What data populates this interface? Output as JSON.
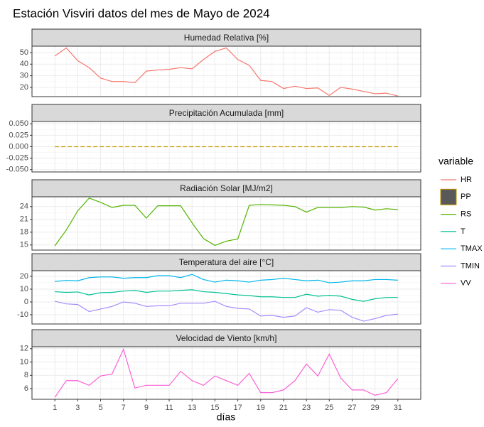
{
  "title": "Estación Visviri datos del mes de Mayo de 2024",
  "xlabel": "días",
  "legend_title": "variable",
  "chart_data": [
    {
      "type": "line",
      "title": "Humedad Relativa [%]",
      "x": [
        1,
        2,
        3,
        4,
        5,
        6,
        7,
        8,
        9,
        10,
        11,
        12,
        13,
        14,
        15,
        16,
        17,
        18,
        19,
        20,
        21,
        22,
        23,
        24,
        25,
        26,
        27,
        28,
        29,
        30,
        31
      ],
      "xlim": [
        -1,
        33
      ],
      "xticks": [
        1,
        3,
        5,
        7,
        9,
        11,
        13,
        15,
        17,
        19,
        21,
        23,
        25,
        27,
        29,
        31
      ],
      "ylim": [
        12,
        55.5
      ],
      "yticks": [
        20,
        30,
        40,
        50
      ],
      "series": [
        {
          "name": "HR",
          "color": "#F8766D",
          "values": [
            47,
            54,
            43,
            37,
            28,
            25,
            25,
            24,
            34,
            35,
            35.5,
            37,
            36,
            44,
            51,
            54,
            44,
            39,
            26,
            25,
            19,
            21,
            19,
            19.5,
            13,
            20,
            18.5,
            16.5,
            14.5,
            15,
            12.5
          ]
        }
      ]
    },
    {
      "type": "line",
      "title": "Precipitación Acumulada [mm]",
      "x": [
        1,
        2,
        3,
        4,
        5,
        6,
        7,
        8,
        9,
        10,
        11,
        12,
        13,
        14,
        15,
        16,
        17,
        18,
        19,
        20,
        21,
        22,
        23,
        24,
        25,
        26,
        27,
        28,
        29,
        30,
        31
      ],
      "xlim": [
        -1,
        33
      ],
      "xticks": [
        1,
        3,
        5,
        7,
        9,
        11,
        13,
        15,
        17,
        19,
        21,
        23,
        25,
        27,
        29,
        31
      ],
      "ylim": [
        -0.055,
        0.055
      ],
      "yticks": [
        {
          "value": -0.05,
          "label": "-0.050"
        },
        {
          "value": -0.025,
          "label": "-0.025"
        },
        {
          "value": 0,
          "label": "0.000"
        },
        {
          "value": 0.025,
          "label": "0.025"
        },
        {
          "value": 0.05,
          "label": "0.050"
        }
      ],
      "series": [
        {
          "name": "PP",
          "color": "#C49A00",
          "fill": "#595959",
          "values": [
            0,
            0,
            0,
            0,
            0,
            0,
            0,
            0,
            0,
            0,
            0,
            0,
            0,
            0,
            0,
            0,
            0,
            0,
            0,
            0,
            0,
            0,
            0,
            0,
            0,
            0,
            0,
            0,
            0,
            0,
            0
          ]
        }
      ]
    },
    {
      "type": "line",
      "title": "Radiación Solar [MJ/m2]",
      "x": [
        1,
        2,
        3,
        4,
        5,
        6,
        7,
        8,
        9,
        10,
        11,
        12,
        13,
        14,
        15,
        16,
        17,
        18,
        19,
        20,
        21,
        22,
        23,
        24,
        25,
        26,
        27,
        28,
        29,
        30,
        31
      ],
      "xlim": [
        -1,
        33
      ],
      "xticks": [
        1,
        3,
        5,
        7,
        9,
        11,
        13,
        15,
        17,
        19,
        21,
        23,
        25,
        27,
        29,
        31
      ],
      "ylim": [
        13.8,
        26.3
      ],
      "yticks": [
        15,
        18,
        21,
        24
      ],
      "series": [
        {
          "name": "RS",
          "color": "#53B400",
          "values": [
            14.8,
            18.5,
            23,
            26,
            25,
            23.8,
            24.3,
            24.3,
            21.3,
            24.2,
            24.2,
            24.2,
            20.2,
            16.5,
            14.9,
            15.9,
            16.4,
            24.3,
            24.5,
            24.4,
            24.3,
            24,
            22.7,
            23.8,
            23.8,
            23.8,
            24,
            23.9,
            23.2,
            23.5,
            23.3
          ]
        }
      ]
    },
    {
      "type": "line",
      "title": "Temperatura del aire [°C]",
      "x": [
        1,
        2,
        3,
        4,
        5,
        6,
        7,
        8,
        9,
        10,
        11,
        12,
        13,
        14,
        15,
        16,
        17,
        18,
        19,
        20,
        21,
        22,
        23,
        24,
        25,
        26,
        27,
        28,
        29,
        30,
        31
      ],
      "xlim": [
        -1,
        33
      ],
      "xticks": [
        1,
        3,
        5,
        7,
        9,
        11,
        13,
        15,
        17,
        19,
        21,
        23,
        25,
        27,
        29,
        31
      ],
      "ylim": [
        -17.2,
        24.4
      ],
      "yticks": [
        -10,
        0,
        10,
        20
      ],
      "series": [
        {
          "name": "T",
          "color": "#00C094",
          "values": [
            8,
            7.5,
            7.8,
            5.5,
            7.2,
            7.5,
            8.5,
            9,
            7.5,
            8.5,
            8.5,
            9,
            9.5,
            8,
            7.5,
            6.5,
            5.5,
            5,
            4,
            4,
            3.5,
            3.5,
            6,
            4.5,
            5.2,
            4.5,
            2,
            0.5,
            2.5,
            3.5,
            3.5
          ]
        },
        {
          "name": "TMAX",
          "color": "#00B6EB",
          "values": [
            16,
            16.8,
            16.5,
            19,
            19.5,
            19.5,
            18.5,
            19,
            19,
            20.5,
            20.5,
            19,
            21.5,
            17.5,
            15.5,
            17,
            16.5,
            15.5,
            17,
            17.5,
            18.5,
            17.5,
            16.5,
            17,
            15,
            15.5,
            16.5,
            16.5,
            17.5,
            17.5,
            17
          ]
        },
        {
          "name": "TMIN",
          "color": "#A58AFF",
          "values": [
            0.5,
            -1.5,
            -2,
            -7.5,
            -5.5,
            -3.5,
            0,
            -1,
            -3.5,
            -3,
            -3,
            -1,
            -1,
            -1,
            0.5,
            -3.5,
            -5,
            -5.5,
            -11,
            -10.5,
            -12,
            -11,
            -4.5,
            -8,
            -6,
            -6.5,
            -12,
            -15,
            -13,
            -10.5,
            -9.5
          ]
        }
      ]
    },
    {
      "type": "line",
      "title": "Velocidad de Viento [km/h]",
      "x": [
        1,
        2,
        3,
        4,
        5,
        6,
        7,
        8,
        9,
        10,
        11,
        12,
        13,
        14,
        15,
        16,
        17,
        18,
        19,
        20,
        21,
        22,
        23,
        24,
        25,
        26,
        27,
        28,
        29,
        30,
        31
      ],
      "xlim": [
        -1,
        33
      ],
      "xticks": [
        1,
        3,
        5,
        7,
        9,
        11,
        13,
        15,
        17,
        19,
        21,
        23,
        25,
        27,
        29,
        31
      ],
      "ylim": [
        4.4,
        12.3
      ],
      "yticks": [
        6,
        8,
        10,
        12
      ],
      "series": [
        {
          "name": "VV",
          "color": "#FB61D7",
          "values": [
            4.7,
            7.2,
            7.2,
            6.5,
            7.9,
            8.2,
            11.9,
            6.1,
            6.5,
            6.5,
            6.5,
            8.6,
            7.2,
            6.5,
            7.9,
            7.2,
            6.5,
            8.3,
            5.4,
            5.4,
            5.8,
            7.2,
            9.7,
            7.9,
            11.2,
            7.6,
            5.8,
            5.8,
            5,
            5.4,
            7.5
          ]
        }
      ]
    }
  ]
}
